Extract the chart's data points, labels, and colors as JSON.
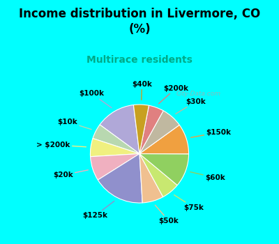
{
  "title": "Income distribution in Livermore, CO\n(%)",
  "subtitle": "Multirace residents",
  "background_color": "#00FFFF",
  "chart_bg_color": "#d8f0e8",
  "watermark": "City-Data.com",
  "labels": [
    "$100k",
    "$10k",
    "> $200k",
    "$20k",
    "$125k",
    "$50k",
    "$75k",
    "$60k",
    "$150k",
    "$30k",
    "$200k",
    "$40k"
  ],
  "values": [
    13,
    5,
    6,
    8,
    17,
    7,
    6,
    11,
    10,
    7,
    5,
    5
  ],
  "colors": [
    "#b0a8d8",
    "#b8d8b0",
    "#f0f080",
    "#f0b0c0",
    "#9090cc",
    "#f0c090",
    "#c8e870",
    "#90d060",
    "#f0a040",
    "#c0b8a0",
    "#e08080",
    "#c8a020"
  ],
  "label_fontsize": 7.5,
  "title_fontsize": 12,
  "subtitle_fontsize": 10,
  "startangle": 97
}
